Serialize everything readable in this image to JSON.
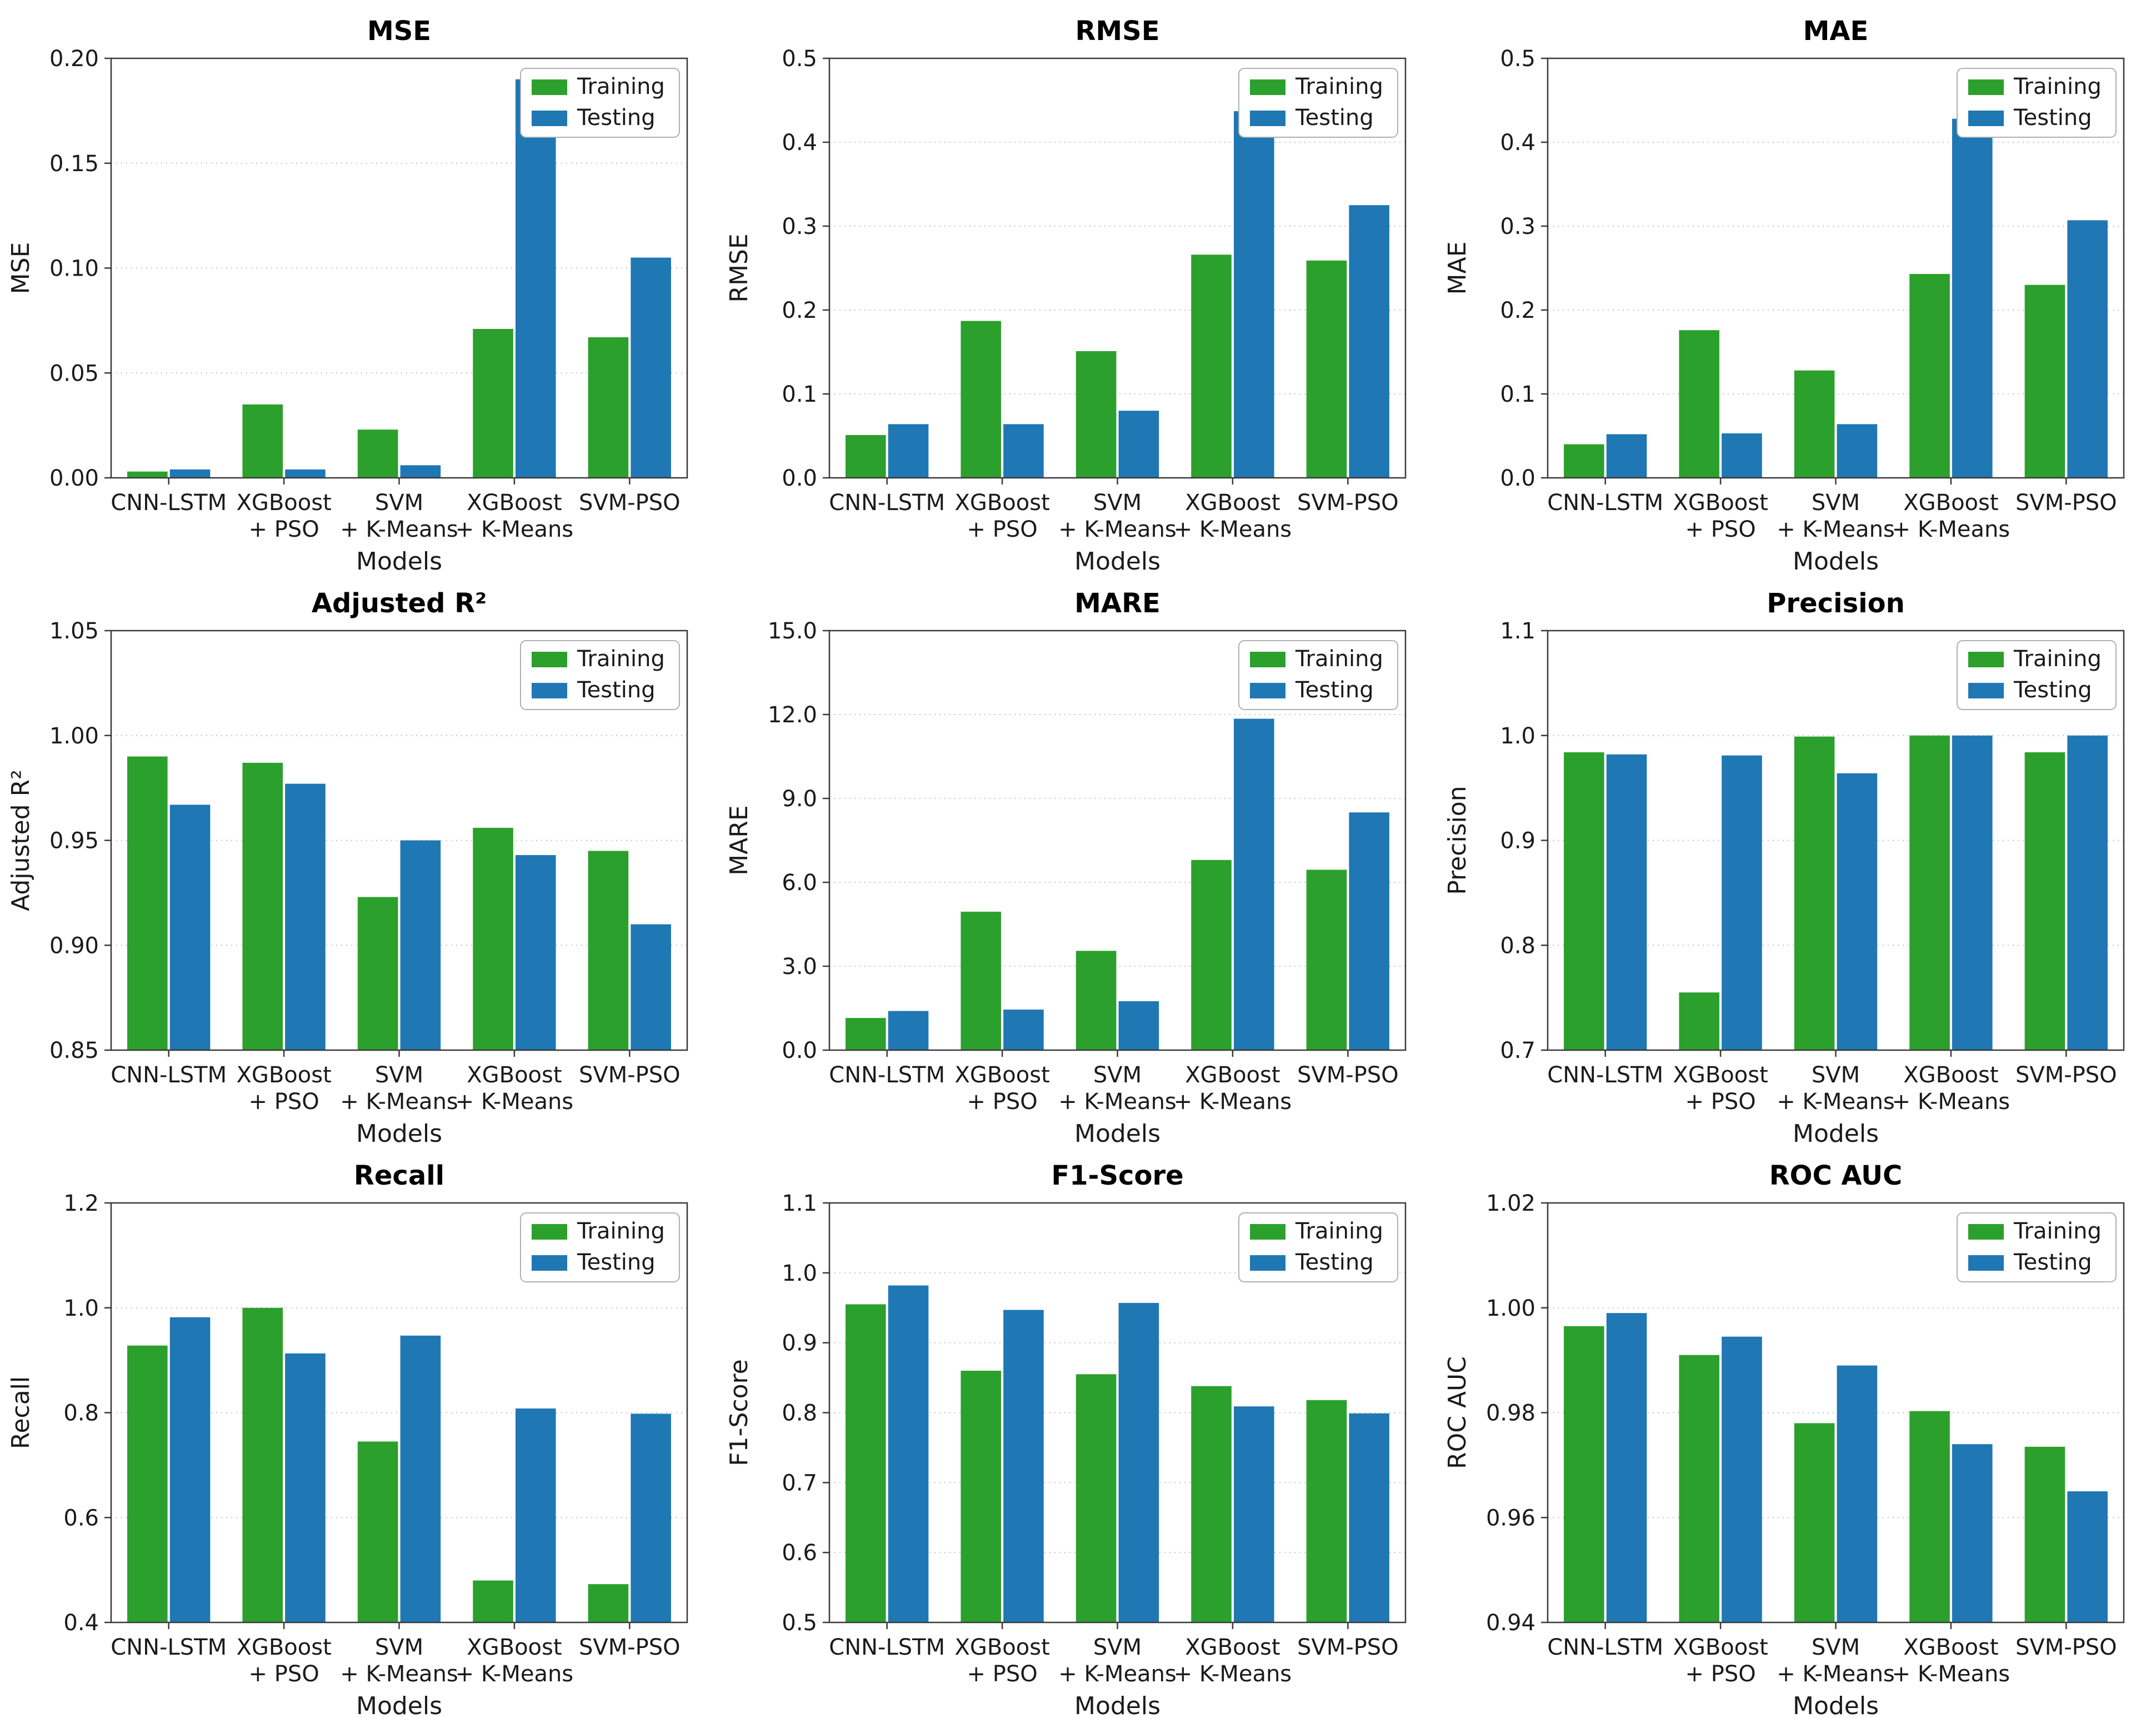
{
  "figure": {
    "background": "#ffffff",
    "grid_rows": 3,
    "grid_cols": 3
  },
  "colors": {
    "training": "#2ca02c",
    "testing": "#1f77b4",
    "grid": "#c2c2c2",
    "spine": "#3a3a3a",
    "text": "#1a1a1a",
    "legend_border": "#b0b0b0",
    "legend_bg": "#ffffff"
  },
  "chart_data": [
    {
      "type": "bar",
      "title": "MSE",
      "xlabel": "Models",
      "ylabel": "MSE",
      "categories": [
        "CNN-LSTM",
        "XGBoost\n+ PSO",
        "SVM\n+ K-Means",
        "XGBoost\n+ K-Means",
        "SVM-PSO"
      ],
      "series": [
        {
          "name": "Training",
          "values": [
            0.003,
            0.035,
            0.023,
            0.071,
            0.067
          ]
        },
        {
          "name": "Testing",
          "values": [
            0.004,
            0.004,
            0.006,
            0.19,
            0.105
          ]
        }
      ],
      "ylim": [
        0,
        0.2
      ],
      "yticks": [
        "0.00",
        "0.05",
        "0.10",
        "0.15",
        "0.20"
      ],
      "grid": true,
      "legend_position": "upper right"
    },
    {
      "type": "bar",
      "title": "RMSE",
      "xlabel": "Models",
      "ylabel": "RMSE",
      "categories": [
        "CNN-LSTM",
        "XGBoost\n+ PSO",
        "SVM\n+ K-Means",
        "XGBoost\n+ K-Means",
        "SVM-PSO"
      ],
      "series": [
        {
          "name": "Training",
          "values": [
            0.051,
            0.187,
            0.151,
            0.266,
            0.259
          ]
        },
        {
          "name": "Testing",
          "values": [
            0.064,
            0.064,
            0.08,
            0.437,
            0.325
          ]
        }
      ],
      "ylim": [
        0,
        0.5
      ],
      "yticks": [
        "0.0",
        "0.1",
        "0.2",
        "0.3",
        "0.4",
        "0.5"
      ],
      "grid": true,
      "legend_position": "upper right"
    },
    {
      "type": "bar",
      "title": "MAE",
      "xlabel": "Models",
      "ylabel": "MAE",
      "categories": [
        "CNN-LSTM",
        "XGBoost\n+ PSO",
        "SVM\n+ K-Means",
        "XGBoost\n+ K-Means",
        "SVM-PSO"
      ],
      "series": [
        {
          "name": "Training",
          "values": [
            0.04,
            0.176,
            0.128,
            0.243,
            0.23
          ]
        },
        {
          "name": "Testing",
          "values": [
            0.052,
            0.053,
            0.064,
            0.428,
            0.307
          ]
        }
      ],
      "ylim": [
        0,
        0.5
      ],
      "yticks": [
        "0.0",
        "0.1",
        "0.2",
        "0.3",
        "0.4",
        "0.5"
      ],
      "grid": true,
      "legend_position": "upper right"
    },
    {
      "type": "bar",
      "title": "Adjusted R²",
      "xlabel": "Models",
      "ylabel": "Adjusted R²",
      "categories": [
        "CNN-LSTM",
        "XGBoost\n+ PSO",
        "SVM\n+ K-Means",
        "XGBoost\n+ K-Means",
        "SVM-PSO"
      ],
      "series": [
        {
          "name": "Training",
          "values": [
            0.99,
            0.987,
            0.923,
            0.956,
            0.945
          ]
        },
        {
          "name": "Testing",
          "values": [
            0.967,
            0.977,
            0.95,
            0.943,
            0.91
          ]
        }
      ],
      "ylim": [
        0.85,
        1.05
      ],
      "yticks": [
        "0.85",
        "0.90",
        "0.95",
        "1.00",
        "1.05"
      ],
      "grid": true,
      "legend_position": "upper right"
    },
    {
      "type": "bar",
      "title": "MARE",
      "xlabel": "Models",
      "ylabel": "MARE",
      "categories": [
        "CNN-LSTM",
        "XGBoost\n+ PSO",
        "SVM\n+ K-Means",
        "XGBoost\n+ K-Means",
        "SVM-PSO"
      ],
      "series": [
        {
          "name": "Training",
          "values": [
            1.15,
            4.95,
            3.55,
            6.8,
            6.45
          ]
        },
        {
          "name": "Testing",
          "values": [
            1.4,
            1.45,
            1.75,
            11.85,
            8.5
          ]
        }
      ],
      "ylim": [
        0,
        15
      ],
      "yticks": [
        "0.0",
        "3.0",
        "6.0",
        "9.0",
        "12.0",
        "15.0"
      ],
      "grid": true,
      "legend_position": "upper right"
    },
    {
      "type": "bar",
      "title": "Precision",
      "xlabel": "Models",
      "ylabel": "Precision",
      "categories": [
        "CNN-LSTM",
        "XGBoost\n+ PSO",
        "SVM\n+ K-Means",
        "XGBoost\n+ K-Means",
        "SVM-PSO"
      ],
      "series": [
        {
          "name": "Training",
          "values": [
            0.984,
            0.755,
            0.999,
            1.0,
            0.984
          ]
        },
        {
          "name": "Testing",
          "values": [
            0.982,
            0.981,
            0.964,
            1.0,
            1.0
          ]
        }
      ],
      "ylim": [
        0.7,
        1.1
      ],
      "yticks": [
        "0.7",
        "0.8",
        "0.9",
        "1.0",
        "1.1"
      ],
      "grid": true,
      "legend_position": "upper right"
    },
    {
      "type": "bar",
      "title": "Recall",
      "xlabel": "Models",
      "ylabel": "Recall",
      "categories": [
        "CNN-LSTM",
        "XGBoost\n+ PSO",
        "SVM\n+ K-Means",
        "XGBoost\n+ K-Means",
        "SVM-PSO"
      ],
      "series": [
        {
          "name": "Training",
          "values": [
            0.928,
            1.0,
            0.745,
            0.48,
            0.473
          ]
        },
        {
          "name": "Testing",
          "values": [
            0.982,
            0.913,
            0.947,
            0.808,
            0.798
          ]
        }
      ],
      "ylim": [
        0.4,
        1.2
      ],
      "yticks": [
        "0.4",
        "0.6",
        "0.8",
        "1.0",
        "1.2"
      ],
      "grid": true,
      "legend_position": "upper right"
    },
    {
      "type": "bar",
      "title": "F1-Score",
      "xlabel": "Models",
      "ylabel": "F1-Score",
      "categories": [
        "CNN-LSTM",
        "XGBoost\n+ PSO",
        "SVM\n+ K-Means",
        "XGBoost\n+ K-Means",
        "SVM-PSO"
      ],
      "series": [
        {
          "name": "Training",
          "values": [
            0.955,
            0.86,
            0.855,
            0.838,
            0.818
          ]
        },
        {
          "name": "Testing",
          "values": [
            0.982,
            0.947,
            0.957,
            0.809,
            0.799
          ]
        }
      ],
      "ylim": [
        0.5,
        1.1
      ],
      "yticks": [
        "0.5",
        "0.6",
        "0.7",
        "0.8",
        "0.9",
        "1.0",
        "1.1"
      ],
      "grid": true,
      "legend_position": "upper right"
    },
    {
      "type": "bar",
      "title": "ROC AUC",
      "xlabel": "Models",
      "ylabel": "ROC AUC",
      "categories": [
        "CNN-LSTM",
        "XGBoost\n+ PSO",
        "SVM\n+ K-Means",
        "XGBoost\n+ K-Means",
        "SVM-PSO"
      ],
      "series": [
        {
          "name": "Training",
          "values": [
            0.9965,
            0.991,
            0.978,
            0.9803,
            0.9735
          ]
        },
        {
          "name": "Testing",
          "values": [
            0.999,
            0.9945,
            0.989,
            0.974,
            0.965
          ]
        }
      ],
      "ylim": [
        0.94,
        1.02
      ],
      "yticks": [
        "0.94",
        "0.96",
        "0.98",
        "1.00",
        "1.02"
      ],
      "grid": true,
      "legend_position": "upper right"
    }
  ]
}
